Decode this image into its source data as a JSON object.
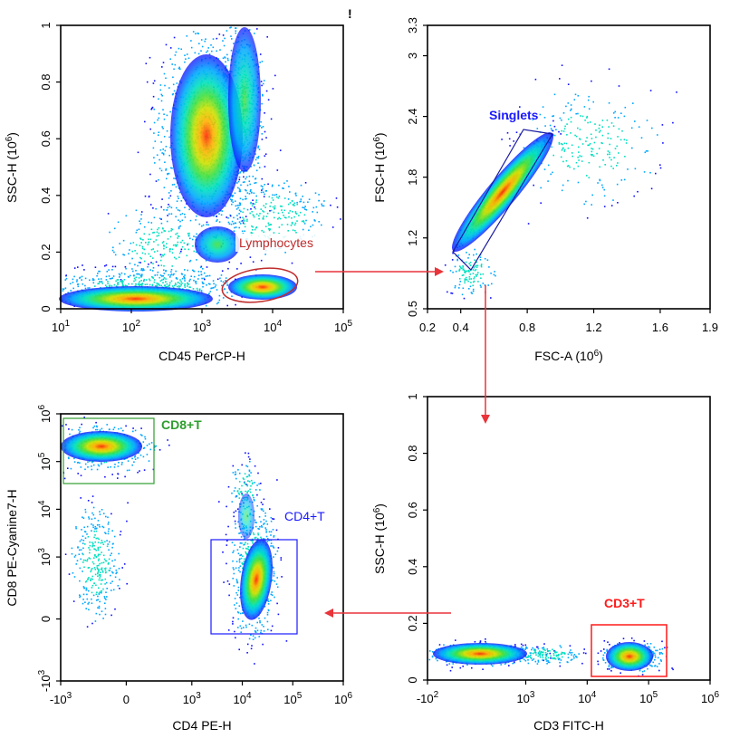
{
  "figure": {
    "marker": "!"
  },
  "colors": {
    "arrow": "#e8343a",
    "density_scale": [
      "#1010ff",
      "#00a8ff",
      "#00e0c0",
      "#40e040",
      "#d0e000",
      "#ffb000",
      "#ff2a00"
    ],
    "lymphocytes_gate": "#c02c2c",
    "singlets_gate": "#1a1aa0",
    "cd8_gate": "#2e9e2e",
    "cd4_gate": "#1a1aff",
    "cd3_gate": "#ff1a1a"
  },
  "chart_data": [
    {
      "type": "scatter",
      "title": "",
      "xlabel": "CD45 PerCP-H",
      "ylabel": "SSC-H (10^6)",
      "x_scale": "log",
      "xlim": [
        10,
        100000
      ],
      "y_scale": "linear",
      "ylim": [
        0,
        1
      ],
      "x_ticks": [
        {
          "base": "10",
          "exp": "1",
          "v": 10
        },
        {
          "base": "10",
          "exp": "2",
          "v": 100
        },
        {
          "base": "10",
          "exp": "3",
          "v": 1000
        },
        {
          "base": "10",
          "exp": "4",
          "v": 10000
        },
        {
          "base": "10",
          "exp": "5",
          "v": 100000
        }
      ],
      "y_ticks": [
        {
          "base": "0",
          "v": 0
        },
        {
          "base": "0.2",
          "v": 0.2
        },
        {
          "base": "0.4",
          "v": 0.4
        },
        {
          "base": "0.6",
          "v": 0.6
        },
        {
          "base": "0.8",
          "v": 0.8
        },
        {
          "base": "1",
          "v": 1
        }
      ],
      "grid": false,
      "populations": [
        {
          "name": "granulocytes",
          "x": 1000,
          "y": 0.65
        },
        {
          "name": "monocytes",
          "x": 3000,
          "y": 0.22
        },
        {
          "name": "debris",
          "x": 200,
          "y": 0.03
        },
        {
          "name": "lymphocytes",
          "x": 6000,
          "y": 0.08
        }
      ],
      "gates": [
        {
          "label": "Lymphocytes",
          "shape": "ellipse"
        }
      ]
    },
    {
      "type": "scatter",
      "title": "",
      "xlabel": "FSC-A (10^6)",
      "ylabel": "FSC-H (10^6)",
      "x_scale": "linear",
      "xlim": [
        0.2,
        1.9
      ],
      "y_scale": "linear",
      "ylim": [
        0.5,
        3.3
      ],
      "x_ticks": [
        {
          "base": "0.2",
          "v": 0.2
        },
        {
          "base": "0.4",
          "v": 0.4
        },
        {
          "base": "0.8",
          "v": 0.8
        },
        {
          "base": "1.2",
          "v": 1.2
        },
        {
          "base": "1.6",
          "v": 1.6
        },
        {
          "base": "1.9",
          "v": 1.9
        }
      ],
      "y_ticks": [
        {
          "base": "0.5",
          "v": 0.5
        },
        {
          "base": "1.2",
          "v": 1.2
        },
        {
          "base": "1.8",
          "v": 1.8
        },
        {
          "base": "2.4",
          "v": 2.4
        },
        {
          "base": "3",
          "v": 3.0
        },
        {
          "base": "3.3",
          "v": 3.3
        }
      ],
      "grid": false,
      "populations": [
        {
          "name": "singlets",
          "x": 0.65,
          "y": 1.6
        }
      ],
      "gates": [
        {
          "label": "Singlets",
          "shape": "polygon"
        }
      ]
    },
    {
      "type": "scatter",
      "title": "",
      "xlabel": "CD3 FITC-H",
      "ylabel": "SSC-H (10^6)",
      "x_scale": "biexponential",
      "xlim": [
        -100,
        1000000
      ],
      "y_scale": "linear",
      "ylim": [
        0,
        1
      ],
      "x_ticks": [
        {
          "base": "-10",
          "exp": "2",
          "v": -100
        },
        {
          "base": "10",
          "exp": "3",
          "v": 1000
        },
        {
          "base": "10",
          "exp": "4",
          "v": 10000
        },
        {
          "base": "10",
          "exp": "5",
          "v": 100000
        },
        {
          "base": "10",
          "exp": "6",
          "v": 1000000
        }
      ],
      "y_ticks": [
        {
          "base": "0",
          "v": 0
        },
        {
          "base": "0.2",
          "v": 0.2
        },
        {
          "base": "0.4",
          "v": 0.4
        },
        {
          "base": "0.6",
          "v": 0.6
        },
        {
          "base": "0.8",
          "v": 0.8
        },
        {
          "base": "1",
          "v": 1
        }
      ],
      "grid": false,
      "populations": [
        {
          "name": "CD3-negative",
          "x": 400,
          "y": 0.07
        },
        {
          "name": "CD3-positive",
          "x": 50000,
          "y": 0.07
        }
      ],
      "gates": [
        {
          "label": "CD3+T",
          "shape": "rectangle"
        }
      ]
    },
    {
      "type": "scatter",
      "title": "",
      "xlabel": "CD4 PE-H",
      "ylabel": "CD8 PE-Cyanine7-H",
      "x_scale": "biexponential",
      "xlim": [
        -1000,
        1000000
      ],
      "y_scale": "biexponential",
      "ylim": [
        -1000,
        1000000
      ],
      "x_ticks": [
        {
          "base": "-10",
          "exp": "3",
          "v": -1000
        },
        {
          "base": "0",
          "v": 0
        },
        {
          "base": "10",
          "exp": "3",
          "v": 1000
        },
        {
          "base": "10",
          "exp": "4",
          "v": 10000
        },
        {
          "base": "10",
          "exp": "5",
          "v": 100000
        },
        {
          "base": "10",
          "exp": "6",
          "v": 1000000
        }
      ],
      "y_ticks": [
        {
          "base": "-10",
          "exp": "3",
          "v": -1000
        },
        {
          "base": "0",
          "v": 0
        },
        {
          "base": "10",
          "exp": "3",
          "v": 1000
        },
        {
          "base": "10",
          "exp": "4",
          "v": 10000
        },
        {
          "base": "10",
          "exp": "5",
          "v": 100000
        },
        {
          "base": "10",
          "exp": "6",
          "v": 1000000
        }
      ],
      "grid": false,
      "populations": [
        {
          "name": "CD8+T",
          "x": 100,
          "y": 220000
        },
        {
          "name": "CD4+T",
          "x": 45000,
          "y": 2500
        },
        {
          "name": "double-negative",
          "x": 150,
          "y": 2000
        }
      ],
      "gates": [
        {
          "label": "CD8+T",
          "shape": "rectangle"
        },
        {
          "label": "CD4+T",
          "shape": "rectangle"
        }
      ]
    }
  ]
}
